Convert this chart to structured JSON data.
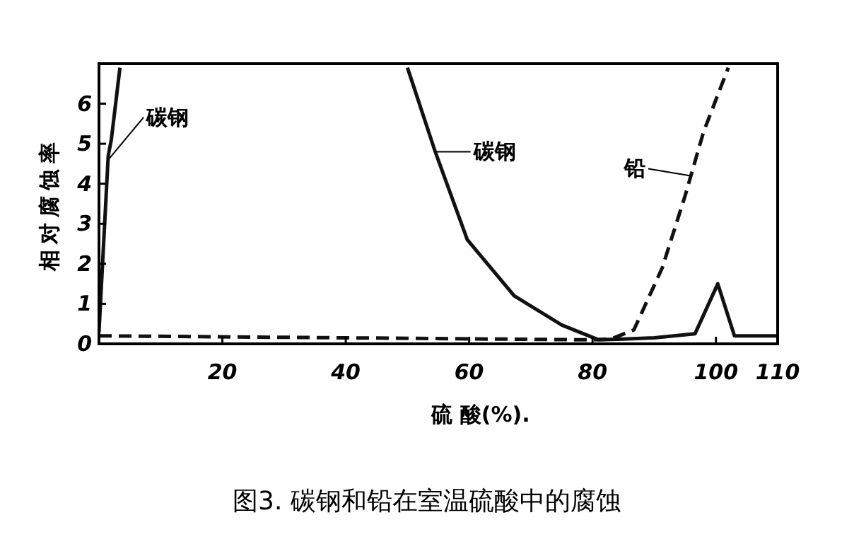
{
  "chart_data": {
    "type": "line",
    "title": "图3.   碳钢和铅在室温硫酸中的腐蚀",
    "xlabel": "硫 酸(%).",
    "ylabel": "相对腐蚀率",
    "xlim": [
      0,
      110
    ],
    "ylim": [
      0,
      7
    ],
    "xticks": [
      20,
      40,
      60,
      80,
      100,
      110
    ],
    "yticks": [
      0,
      1,
      2,
      3,
      4,
      5,
      6
    ],
    "grid": false,
    "series": [
      {
        "color": "#111111",
        "line_style": "solid",
        "x": [
          0,
          1.5,
          2,
          3.4,
          null,
          50,
          54.5,
          59.7,
          67.3,
          75,
          81,
          85,
          90,
          96.6,
          100.3,
          103,
          110
        ],
        "values": [
          0.3,
          4.7,
          5.1,
          6.9,
          null,
          6.9,
          4.8,
          2.6,
          1.2,
          0.47,
          0.1,
          0.12,
          0.15,
          0.25,
          1.5,
          0.2,
          0.2
        ]
      },
      {
        "color": "#111111",
        "line_style": "dashed",
        "x": [
          0,
          40,
          80,
          83,
          86.7,
          91.3,
          95,
          98,
          102
        ],
        "values": [
          0.2,
          0.15,
          0.1,
          0.12,
          0.35,
          1.9,
          3.7,
          5.3,
          6.9
        ]
      }
    ],
    "annotations": [
      {
        "text": "碳钢",
        "x": 1.5,
        "y": 4.6
      },
      {
        "text": "碳钢",
        "x": 54.5,
        "y": 4.8
      },
      {
        "text": "铅",
        "x": 95.9,
        "y": 4.2
      }
    ]
  }
}
